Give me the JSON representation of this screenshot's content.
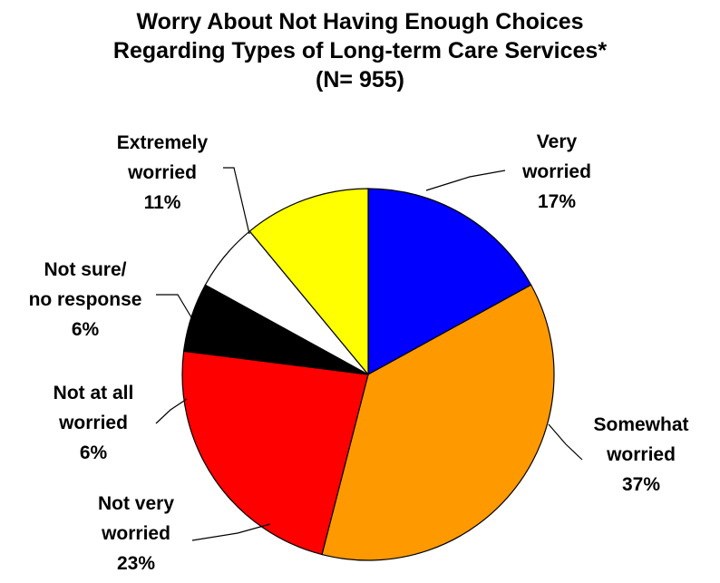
{
  "chart_data": {
    "type": "pie",
    "title_lines": [
      "Worry About Not Having Enough Choices",
      "Regarding Types of Long-term Care Services*",
      "(N= 955)"
    ],
    "slices": [
      {
        "name": "Very worried",
        "label_lines": [
          "Very",
          "worried"
        ],
        "value": 17,
        "value_label": "17%",
        "color": "#0000FF"
      },
      {
        "name": "Somewhat worried",
        "label_lines": [
          "Somewhat",
          "worried"
        ],
        "value": 37,
        "value_label": "37%",
        "color": "#FF9900"
      },
      {
        "name": "Not very worried",
        "label_lines": [
          "Not very",
          "worried"
        ],
        "value": 23,
        "value_label": "23%",
        "color": "#FF0000"
      },
      {
        "name": "Not at all worried",
        "label_lines": [
          "Not at all",
          "worried"
        ],
        "value": 6,
        "value_label": "6%",
        "color": "#000000"
      },
      {
        "name": "Not sure/ no response",
        "label_lines": [
          "Not sure/",
          "no response"
        ],
        "value": 6,
        "value_label": "6%",
        "color": "#FFFFFF"
      },
      {
        "name": "Extremely worried",
        "label_lines": [
          "Extremely",
          "worried"
        ],
        "value": 11,
        "value_label": "11%",
        "color": "#FFFF00"
      }
    ],
    "start_direction": "top, clockwise",
    "legend": "none"
  }
}
